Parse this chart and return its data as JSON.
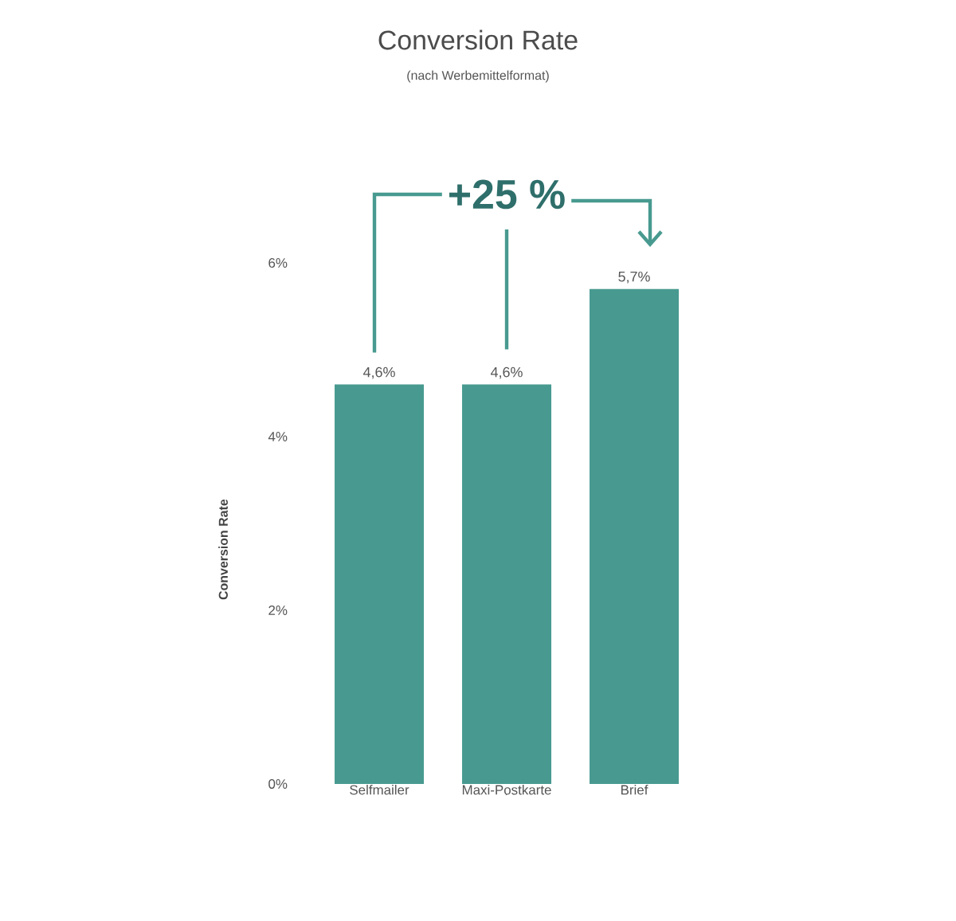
{
  "chart_data": {
    "type": "bar",
    "title": "Conversion Rate",
    "subtitle": "(nach Werbemittelformat)",
    "ylabel": "Conversion Rate",
    "categories": [
      "Selfmailer",
      "Maxi-Postkarte",
      "Brief"
    ],
    "values": [
      4.6,
      4.6,
      5.7
    ],
    "value_labels": [
      "4,6%",
      "4,6%",
      "5,7%"
    ],
    "color": "#489a90",
    "ylim": [
      0,
      6
    ],
    "yticks": [
      {
        "value": 0,
        "label": "0%"
      },
      {
        "value": 2,
        "label": "2%"
      },
      {
        "value": 4,
        "label": "4%"
      },
      {
        "value": 6,
        "label": "6%"
      }
    ],
    "grid": false,
    "annotations": [
      "+25 %"
    ]
  }
}
